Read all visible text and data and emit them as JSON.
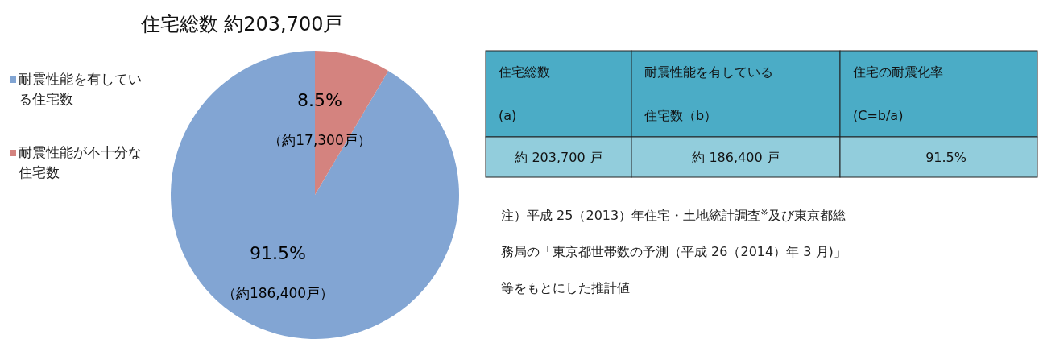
{
  "chart_data": {
    "type": "pie",
    "title": "住宅総数 約203,700戸",
    "categories": [
      "耐震性能を有している住宅数",
      "耐震性能が不十分な住宅数"
    ],
    "values": [
      91.5,
      8.5
    ],
    "colors": [
      "#82a5d3",
      "#d4837f"
    ],
    "value_labels": [
      "91.5%\n（約186,400戸）",
      "8.5%\n（約17,300戸）"
    ],
    "legend": "left",
    "annotations": [
      "住宅総数(a)",
      "耐震性能を有している住宅数（b）",
      "住宅の耐震化率(C=b/a)",
      "約 203,700 戸",
      "約 186,400 戸",
      "91.5%",
      "注）平成 25（2013）年住宅・土地統計調査$^{※}$及び東京都総務局の「東京都世帯数の予測（平成 26（2014）年 3 月)」等をもとにした推計値"
    ]
  }
}
